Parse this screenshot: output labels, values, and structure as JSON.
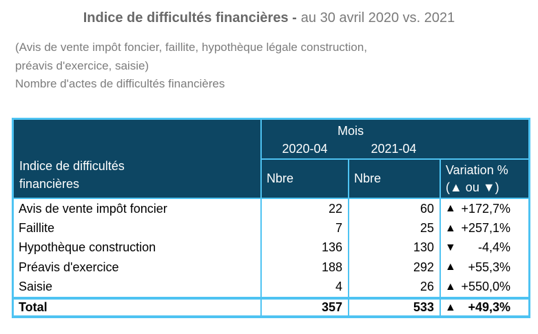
{
  "title": {
    "bold": "Indice de difficultés financières -",
    "regular": "au 30 avril 2020 vs. 2021"
  },
  "subtitle_lines": [
    "(Avis de vente impôt foncier, faillite, hypothèque légale construction,",
    "préavis d'exercice, saisie)",
    "Nombre d'actes de difficultés financières"
  ],
  "table": {
    "row_header_line1": "Indice de difficultés",
    "row_header_line2": "financières",
    "group_header": "Mois",
    "period_2020": "2020-04",
    "period_2021": "2021-04",
    "col_nbre_2020": "Nbre",
    "col_nbre_2021": "Nbre",
    "col_variation_line1": "Variation %",
    "col_variation_line2": "(▲ ou ▼)",
    "rows": [
      {
        "label": "Avis de vente impôt foncier",
        "v2020": "22",
        "v2021": "60",
        "arrow": "▲",
        "variation": "+172,7%"
      },
      {
        "label": "Faillite",
        "v2020": "7",
        "v2021": "25",
        "arrow": "▲",
        "variation": "+257,1%"
      },
      {
        "label": "Hypothèque construction",
        "v2020": "136",
        "v2021": "130",
        "arrow": "▼",
        "variation": "-4,4%"
      },
      {
        "label": "Préavis d'exercice",
        "v2020": "188",
        "v2021": "292",
        "arrow": "▲",
        "variation": "+55,3%"
      },
      {
        "label": "Saisie",
        "v2020": "4",
        "v2021": "26",
        "arrow": "▲",
        "variation": "+550,0%"
      }
    ],
    "total": {
      "label": "Total",
      "v2020": "357",
      "v2021": "533",
      "arrow": "▲",
      "variation": "+49,3%"
    }
  },
  "chart_data": {
    "type": "table",
    "title": "Indice de difficultés financières - au 30 avril 2020 vs. 2021",
    "categories": [
      "Avis de vente impôt foncier",
      "Faillite",
      "Hypothèque construction",
      "Préavis d'exercice",
      "Saisie"
    ],
    "series": [
      {
        "name": "2020-04 Nbre",
        "values": [
          22,
          7,
          136,
          188,
          4
        ]
      },
      {
        "name": "2021-04 Nbre",
        "values": [
          60,
          25,
          130,
          292,
          26
        ]
      }
    ],
    "variations_pct": [
      "+172,7%",
      "+257,1%",
      "-4,4%",
      "+55,3%",
      "+550,0%"
    ],
    "variation_directions": [
      "up",
      "up",
      "down",
      "up",
      "up"
    ],
    "total": {
      "v2020": 357,
      "v2021": 533,
      "variation_pct": "+49,3%",
      "direction": "up"
    }
  },
  "colors": {
    "header_bg": "#0d4663",
    "border": "#4ec3f2",
    "title_gray": "#6b6b6b",
    "subtitle_gray": "#7c7c7c",
    "body_text": "#000000"
  }
}
